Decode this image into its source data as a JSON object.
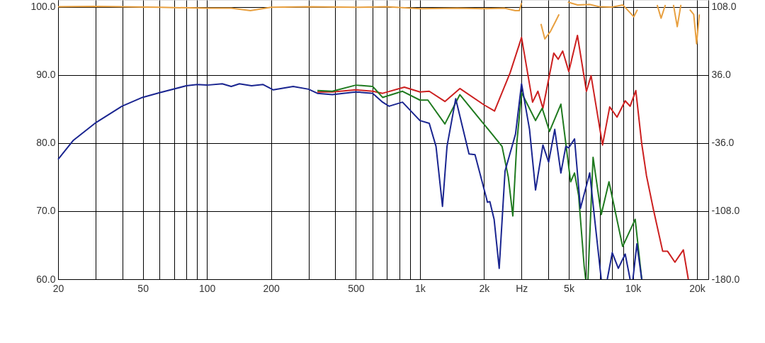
{
  "chart_data": {
    "type": "line",
    "log": "x",
    "grid": true,
    "line_style": "solid",
    "xlim": [
      20,
      22600
    ],
    "ylim": [
      60,
      101
    ],
    "y2lim": [
      -180,
      115.2
    ],
    "xticks": [
      20,
      {
        "value": 30,
        "label": null
      },
      {
        "value": 40,
        "label": null
      },
      50,
      {
        "value": 60,
        "label": null
      },
      {
        "value": 70,
        "label": null
      },
      {
        "value": 80,
        "label": null
      },
      {
        "value": 90,
        "label": null
      },
      100,
      200,
      {
        "value": 300,
        "label": null
      },
      {
        "value": 400,
        "label": null
      },
      500,
      {
        "value": 600,
        "label": null
      },
      {
        "value": 700,
        "label": null
      },
      {
        "value": 800,
        "label": null
      },
      {
        "value": 900,
        "label": null
      },
      {
        "value": 1000,
        "label": "1k"
      },
      {
        "value": 2000,
        "label": "2k"
      },
      {
        "value": 3000,
        "label": "Hz"
      },
      {
        "value": 4000,
        "label": null
      },
      {
        "value": 5000,
        "label": "5k"
      },
      {
        "value": 6000,
        "label": null
      },
      {
        "value": 7000,
        "label": null
      },
      {
        "value": 8000,
        "label": null
      },
      {
        "value": 9000,
        "label": null
      },
      {
        "value": 10000,
        "label": "10k"
      },
      {
        "value": 20000,
        "label": "20k"
      }
    ],
    "yticks": [
      {
        "value": 60,
        "label": "60.0"
      },
      {
        "value": 70,
        "label": "70.0"
      },
      {
        "value": 80,
        "label": "80.0"
      },
      {
        "value": 90,
        "label": "90.0"
      },
      {
        "value": 100,
        "label": "100.0"
      }
    ],
    "y2ticks": [
      {
        "value": -180,
        "label": "-180.0"
      },
      {
        "value": -108,
        "label": "-108.0"
      },
      {
        "value": -36,
        "label": "-36.0"
      },
      {
        "value": 36,
        "label": "36.0"
      },
      {
        "value": 108,
        "label": "108.0"
      }
    ],
    "series": [
      {
        "color": "#cc2020",
        "x": [
          330,
          388,
          500,
          600,
          668,
          845,
          1000,
          1106,
          1310,
          1540,
          2000,
          2240,
          2650,
          3000,
          3380,
          3580,
          3780,
          4250,
          4460,
          4680,
          5000,
          5490,
          6050,
          6360,
          7200,
          7780,
          8420,
          9200,
          9700,
          10320,
          11000,
          11580,
          12490,
          13800,
          14550,
          15750,
          17250,
          18200
        ],
        "values": [
          87.5,
          87.5,
          87.8,
          87.6,
          87.3,
          88.2,
          87.5,
          87.6,
          86.1,
          88.0,
          85.6,
          84.7,
          90.3,
          95.5,
          86.0,
          87.6,
          85.1,
          93.2,
          92.3,
          93.5,
          90.5,
          95.8,
          87.6,
          89.9,
          79.7,
          85.3,
          83.8,
          86.2,
          85.4,
          87.7,
          79.9,
          75.2,
          70.2,
          64.1,
          64.1,
          62.5,
          64.3,
          60.0
        ]
      },
      {
        "color": "#1f7a1f",
        "x": [
          330,
          388,
          500,
          600,
          668,
          828,
          1000,
          1090,
          1310,
          1540,
          1910,
          2130,
          2430,
          2600,
          2730,
          2850,
          3000,
          3490,
          3750,
          4060,
          4590,
          5100,
          5320,
          5560,
          5900,
          6000,
          6080,
          6150,
          6500,
          7100,
          7720,
          8950,
          10250,
          11000
        ],
        "values": [
          87.7,
          87.6,
          88.5,
          88.3,
          86.7,
          87.6,
          86.3,
          86.3,
          82.8,
          87.1,
          83.5,
          81.7,
          79.5,
          75.0,
          69.3,
          80.0,
          87.4,
          83.3,
          85.1,
          81.7,
          85.7,
          74.3,
          75.6,
          72.3,
          62.0,
          60.0,
          null,
          60.0,
          77.9,
          69.5,
          74.3,
          64.8,
          68.8,
          60.0
        ]
      },
      {
        "color": "#1a2590",
        "x": [
          20,
          23.6,
          29.8,
          39.9,
          49.8,
          60,
          80,
          90,
          100,
          118,
          130,
          142,
          162,
          183,
          205,
          254,
          300,
          330,
          388,
          500,
          600,
          668,
          716,
          828,
          1000,
          1106,
          1190,
          1276,
          1340,
          1472,
          1700,
          1814,
          2076,
          2130,
          2230,
          2356,
          2510,
          2810,
          3000,
          3270,
          3490,
          3780,
          4020,
          4296,
          4590,
          4840,
          5000,
          5320,
          5670,
          6270,
          6600,
          7100,
          7300,
          7580,
          8000,
          8540,
          9200,
          9700,
          9850,
          10000,
          10440,
          11000
        ],
        "values": [
          77.6,
          80.4,
          82.9,
          85.4,
          86.7,
          87.4,
          88.4,
          88.6,
          88.5,
          88.7,
          88.3,
          88.7,
          88.4,
          88.6,
          87.8,
          88.3,
          87.9,
          87.3,
          87.1,
          87.5,
          87.3,
          86.0,
          85.4,
          86.0,
          83.3,
          82.9,
          79.5,
          70.7,
          79.5,
          86.5,
          78.4,
          78.3,
          71.3,
          71.4,
          68.8,
          61.6,
          75.9,
          81.3,
          88.7,
          82.0,
          73.1,
          79.7,
          77.2,
          82.0,
          75.6,
          79.5,
          79.3,
          80.6,
          70.4,
          75.6,
          69.1,
          60.0,
          null,
          60.0,
          63.9,
          61.6,
          63.7,
          60.0,
          null,
          60.0,
          65.2,
          60.0
        ]
      },
      {
        "color": "#e8a040",
        "axis": "y2",
        "x": [
          20,
          30,
          40,
          60,
          100,
          130,
          160,
          200,
          300,
          500,
          700,
          1000,
          1500,
          2000,
          2500,
          2800,
          2930,
          3000,
          3100,
          3500,
          3700,
          3860,
          4100,
          4320,
          4500,
          4600,
          4950,
          5500,
          6260,
          7000,
          8000,
          8960,
          10100,
          10500,
          11000,
          12500,
          13000,
          13560,
          14200,
          14800,
          15500,
          16150,
          16800,
          17500,
          18500,
          19300,
          19900,
          20500
        ],
        "values": [
          108,
          108.5,
          108,
          107.5,
          106.5,
          106.5,
          104,
          107.5,
          108,
          107.5,
          108,
          106,
          106.5,
          106,
          106.5,
          104,
          104,
          112,
          null,
          null,
          90,
          74,
          82,
          92,
          100,
          null,
          113,
          110,
          110.5,
          108,
          107.8,
          110,
          97.5,
          105,
          null,
          null,
          110,
          96,
          110,
          null,
          110,
          87,
          110,
          null,
          105,
          100,
          69,
          100
        ]
      }
    ]
  }
}
